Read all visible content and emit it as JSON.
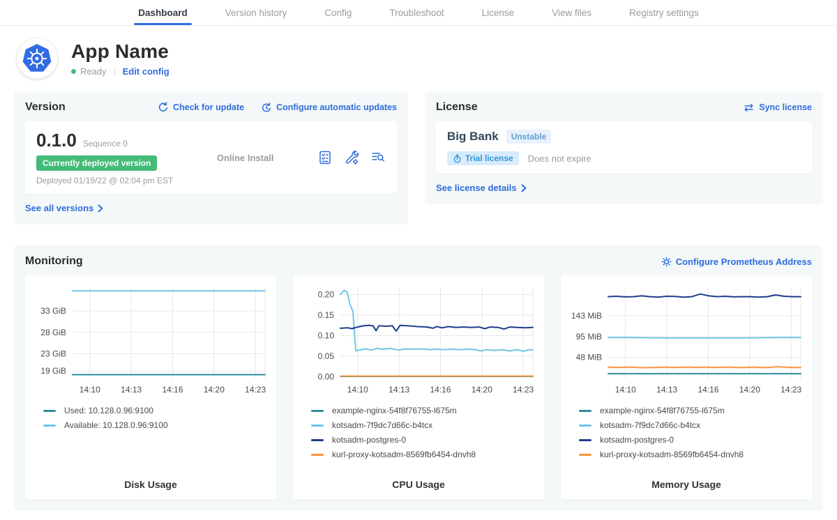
{
  "nav": {
    "tabs": [
      {
        "label": "Dashboard",
        "active": true
      },
      {
        "label": "Version history",
        "active": false
      },
      {
        "label": "Config",
        "active": false
      },
      {
        "label": "Troubleshoot",
        "active": false
      },
      {
        "label": "License",
        "active": false
      },
      {
        "label": "View files",
        "active": false
      },
      {
        "label": "Registry settings",
        "active": false
      }
    ]
  },
  "app": {
    "name": "App Name",
    "status": "Ready",
    "edit_config_label": "Edit config"
  },
  "version": {
    "title": "Version",
    "check_update_label": "Check for update",
    "auto_updates_label": "Configure automatic updates",
    "number": "0.1.0",
    "sequence_label": "Sequence 0",
    "deployed_badge": "Currently deployed version",
    "install_type": "Online Install",
    "deployed_at": "Deployed 01/19/22 @ 02:04 pm EST",
    "see_all_label": "See all versions",
    "action_icons": [
      "preflight-checks-icon",
      "edit-config-wrench-icon",
      "view-logs-icon"
    ]
  },
  "license": {
    "title": "License",
    "sync_label": "Sync license",
    "customer_name": "Big Bank",
    "channel_badge": "Unstable",
    "type_badge": "Trial license",
    "expiry": "Does not expire",
    "details_label": "See license details"
  },
  "monitoring": {
    "title": "Monitoring",
    "configure_label": "Configure Prometheus Address"
  },
  "colors": {
    "accent_blue": "#2f6ddb",
    "active_tab_underline": "#326de6",
    "status_green": "#44bb77",
    "teal_series": "#2d8d99",
    "light_blue_series": "#6ec6ea",
    "navy_series": "#1d3c8a",
    "orange_series": "#f7953e"
  },
  "chart_data": [
    {
      "id": "disk-usage",
      "type": "line",
      "title": "Disk Usage",
      "x_ticks": [
        "14:10",
        "14:13",
        "14:16",
        "14:20",
        "14:23"
      ],
      "x_tick_pos": [
        0.09,
        0.305,
        0.52,
        0.735,
        0.95
      ],
      "y_range": [
        17.2,
        38.4
      ],
      "y_ticks": [
        {
          "label": "33 GiB",
          "value": 33
        },
        {
          "label": "28 GiB",
          "value": 28
        },
        {
          "label": "23 GiB",
          "value": 23
        },
        {
          "label": "19 GiB",
          "value": 19
        }
      ],
      "series": [
        {
          "name": "Used: 10.128.0.96:9100",
          "color": "#2d8d99",
          "values": [
            18.1,
            18.1
          ]
        },
        {
          "name": "Available: 10.128.0.96:9100",
          "color": "#6ec6ea",
          "values": [
            37.7,
            37.7
          ]
        }
      ]
    },
    {
      "id": "cpu-usage",
      "type": "line",
      "title": "CPU Usage",
      "x_ticks": [
        "14:10",
        "14:13",
        "14:16",
        "14:20",
        "14:23"
      ],
      "x_tick_pos": [
        0.09,
        0.305,
        0.52,
        0.735,
        0.95
      ],
      "y_range": [
        -0.004,
        0.216
      ],
      "y_ticks": [
        {
          "label": "0.20",
          "value": 0.2
        },
        {
          "label": "0.15",
          "value": 0.15
        },
        {
          "label": "0.10",
          "value": 0.1
        },
        {
          "label": "0.05",
          "value": 0.05
        },
        {
          "label": "0.00",
          "value": 0.0
        }
      ],
      "series": [
        {
          "name": "example-nginx-54f8f76755-l675m",
          "color": "#2d8d99",
          "values": [
            0.001,
            0.001
          ]
        },
        {
          "name": "kotsadm-7f9dc7d66c-b4tcx",
          "color": "#6ec6ea",
          "points": [
            [
              0,
              0.2
            ],
            [
              0.02,
              0.21
            ],
            [
              0.035,
              0.206
            ],
            [
              0.05,
              0.175
            ],
            [
              0.065,
              0.16
            ],
            [
              0.08,
              0.063
            ],
            [
              0.1,
              0.065
            ],
            [
              0.13,
              0.068
            ],
            [
              0.16,
              0.065
            ],
            [
              0.19,
              0.069
            ],
            [
              0.22,
              0.067
            ],
            [
              0.26,
              0.069
            ],
            [
              0.3,
              0.065
            ],
            [
              0.34,
              0.068
            ],
            [
              0.38,
              0.067
            ],
            [
              0.42,
              0.068
            ],
            [
              0.46,
              0.066
            ],
            [
              0.5,
              0.067
            ],
            [
              0.54,
              0.066
            ],
            [
              0.58,
              0.067
            ],
            [
              0.62,
              0.066
            ],
            [
              0.66,
              0.067
            ],
            [
              0.7,
              0.066
            ],
            [
              0.73,
              0.063
            ],
            [
              0.76,
              0.066
            ],
            [
              0.8,
              0.064
            ],
            [
              0.84,
              0.066
            ],
            [
              0.88,
              0.063
            ],
            [
              0.92,
              0.066
            ],
            [
              0.95,
              0.062
            ],
            [
              0.98,
              0.066
            ],
            [
              1,
              0.065
            ]
          ]
        },
        {
          "name": "kotsadm-postgres-0",
          "color": "#1d3c8a",
          "points": [
            [
              0,
              0.118
            ],
            [
              0.04,
              0.119
            ],
            [
              0.06,
              0.117
            ],
            [
              0.09,
              0.121
            ],
            [
              0.12,
              0.124
            ],
            [
              0.15,
              0.125
            ],
            [
              0.17,
              0.124
            ],
            [
              0.185,
              0.112
            ],
            [
              0.2,
              0.124
            ],
            [
              0.24,
              0.123
            ],
            [
              0.27,
              0.124
            ],
            [
              0.29,
              0.111
            ],
            [
              0.31,
              0.125
            ],
            [
              0.35,
              0.124
            ],
            [
              0.4,
              0.122
            ],
            [
              0.45,
              0.121
            ],
            [
              0.48,
              0.118
            ],
            [
              0.5,
              0.122
            ],
            [
              0.53,
              0.119
            ],
            [
              0.56,
              0.122
            ],
            [
              0.6,
              0.12
            ],
            [
              0.64,
              0.121
            ],
            [
              0.68,
              0.12
            ],
            [
              0.72,
              0.121
            ],
            [
              0.75,
              0.117
            ],
            [
              0.78,
              0.121
            ],
            [
              0.82,
              0.12
            ],
            [
              0.85,
              0.116
            ],
            [
              0.88,
              0.121
            ],
            [
              0.92,
              0.12
            ],
            [
              0.96,
              0.119
            ],
            [
              1,
              0.12
            ]
          ]
        },
        {
          "name": "kurl-proxy-kotsadm-8569fb6454-dnvh8",
          "color": "#f7953e",
          "values": [
            0.002,
            0.002
          ]
        }
      ]
    },
    {
      "id": "memory-usage",
      "type": "line",
      "title": "Memory Usage",
      "x_ticks": [
        "14:10",
        "14:13",
        "14:16",
        "14:20",
        "14:23"
      ],
      "x_tick_pos": [
        0.09,
        0.305,
        0.52,
        0.735,
        0.95
      ],
      "y_range": [
        0,
        206
      ],
      "y_ticks": [
        {
          "label": "143 MiB",
          "value": 143
        },
        {
          "label": "95 MiB",
          "value": 95
        },
        {
          "label": "48 MiB",
          "value": 48
        }
      ],
      "series": [
        {
          "name": "example-nginx-54f8f76755-l675m",
          "color": "#2d8d99",
          "values": [
            11,
            11
          ]
        },
        {
          "name": "kotsadm-7f9dc7d66c-b4tcx",
          "color": "#6ec6ea",
          "values": [
            93,
            93,
            92.5,
            92,
            92,
            92,
            92,
            92.5,
            93,
            93
          ]
        },
        {
          "name": "kotsadm-postgres-0",
          "color": "#1d3c8a",
          "values": [
            186,
            187,
            185.5,
            186,
            188,
            186,
            185,
            187,
            186.5,
            185,
            186,
            192,
            188,
            186,
            187,
            185.5,
            186,
            186,
            185,
            186,
            190,
            187,
            186,
            186
          ]
        },
        {
          "name": "kurl-proxy-kotsadm-8569fb6454-dnvh8",
          "color": "#f7953e",
          "values": [
            26,
            25,
            25.5,
            26,
            24.5,
            25,
            25,
            26,
            25,
            25.5,
            26,
            25,
            26,
            25,
            25.5,
            26,
            25,
            25,
            26,
            25,
            25,
            27,
            26,
            25,
            25
          ]
        }
      ]
    }
  ]
}
